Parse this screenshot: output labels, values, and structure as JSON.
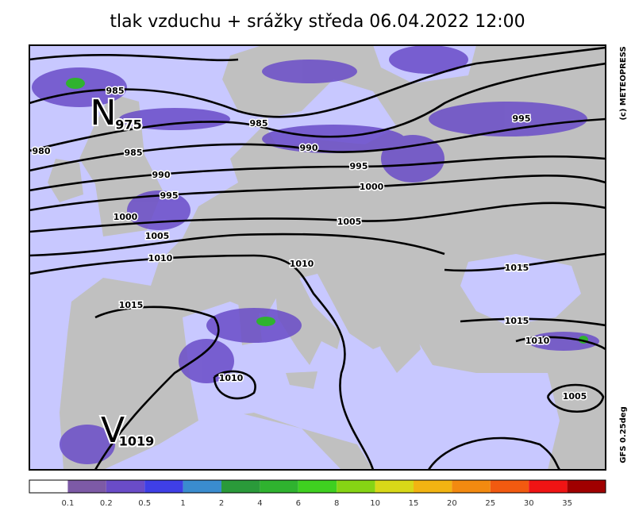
{
  "title": "tlak vzduchu + srážky  středa 06.04.2022 12:00",
  "credit": "(c) METEOPRESS",
  "model": "GFS 0.25deg",
  "centers": [
    {
      "letter": "N",
      "value": "975"
    },
    {
      "letter": "V",
      "value": "1019"
    }
  ],
  "isobar_labels": [
    985,
    985,
    990,
    995,
    980,
    985,
    990,
    995,
    995,
    1000,
    1000,
    1005,
    1005,
    1010,
    1010,
    1015,
    1015,
    1015,
    1010,
    1010,
    1005
  ],
  "colorbar": {
    "colors": [
      "#ffffff",
      "#7d5aa6",
      "#6a4cc8",
      "#3f3fe6",
      "#3a8ccf",
      "#2a9a3a",
      "#2fb32f",
      "#3fd020",
      "#86d414",
      "#d8d818",
      "#f2b412",
      "#f38a10",
      "#f25a10",
      "#f01414",
      "#a00000"
    ],
    "labels": [
      "0.1",
      "0.2",
      "0.5",
      "1",
      "2",
      "4",
      "6",
      "8",
      "10",
      "15",
      "20",
      "25",
      "30",
      "35"
    ]
  }
}
